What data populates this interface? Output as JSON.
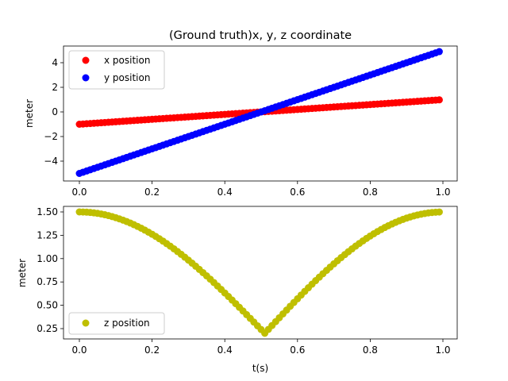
{
  "chart_data": [
    {
      "type": "scatter",
      "title": "(Ground truth)x, y, z coordinate",
      "xlabel": "",
      "ylabel": "meter",
      "xlim": [
        -0.05,
        1.04
      ],
      "ylim": [
        -5.5,
        5.5
      ],
      "x_ticks": [
        "0.0",
        "0.2",
        "0.4",
        "0.6",
        "0.8",
        "1.0"
      ],
      "y_ticks": [
        "−4",
        "−2",
        "0",
        "2",
        "4"
      ],
      "legend_position": "top-left",
      "grid": false,
      "series": [
        {
          "name": "x position",
          "color": "#ff0000",
          "t_start": 0.0,
          "t_end": 0.99,
          "t_step": 0.01,
          "value_start": -1.0,
          "value_end": 0.98
        },
        {
          "name": "y position",
          "color": "#0000ff",
          "t_start": 0.0,
          "t_end": 0.99,
          "t_step": 0.01,
          "value_start": -5.0,
          "value_end": 4.9
        }
      ]
    },
    {
      "type": "scatter",
      "title": "",
      "xlabel": "t(s)",
      "ylabel": "meter",
      "xlim": [
        -0.05,
        1.04
      ],
      "ylim": [
        0.13,
        1.56
      ],
      "x_ticks": [
        "0.0",
        "0.2",
        "0.4",
        "0.6",
        "0.8",
        "1.0"
      ],
      "y_ticks": [
        "0.25",
        "0.50",
        "0.75",
        "1.00",
        "1.25",
        "1.50"
      ],
      "legend_position": "bottom-left",
      "grid": false,
      "series": [
        {
          "name": "z position",
          "color": "#bfbf00",
          "t_start": 0.0,
          "t_end": 0.99,
          "t_step": 0.01,
          "min_value": 0.2,
          "max_value": 1.5,
          "min_at_t": 0.51
        }
      ]
    }
  ]
}
